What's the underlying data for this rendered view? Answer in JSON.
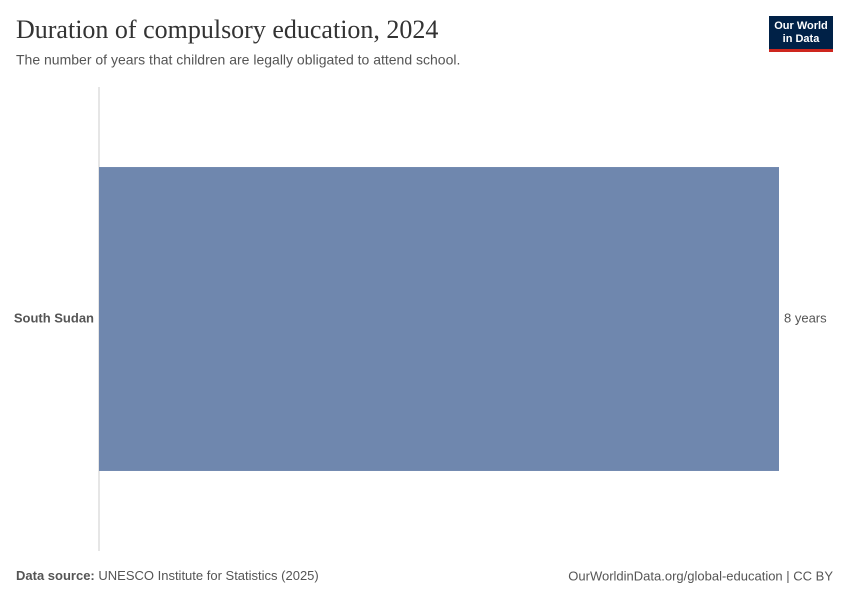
{
  "chart_data": {
    "type": "bar",
    "orientation": "horizontal",
    "title": "Duration of compulsory education, 2024",
    "subtitle": "The number of years that children are legally obligated to attend school.",
    "categories": [
      "South Sudan"
    ],
    "values": [
      8
    ],
    "value_labels": [
      "8 years"
    ],
    "color": "#6f87ae",
    "logo": [
      "Our World",
      "in Data"
    ],
    "source_label": "Data source:",
    "source": "UNESCO Institute for Statistics (2025)",
    "url_note": "OurWorldinData.org/global-education | CC BY"
  }
}
